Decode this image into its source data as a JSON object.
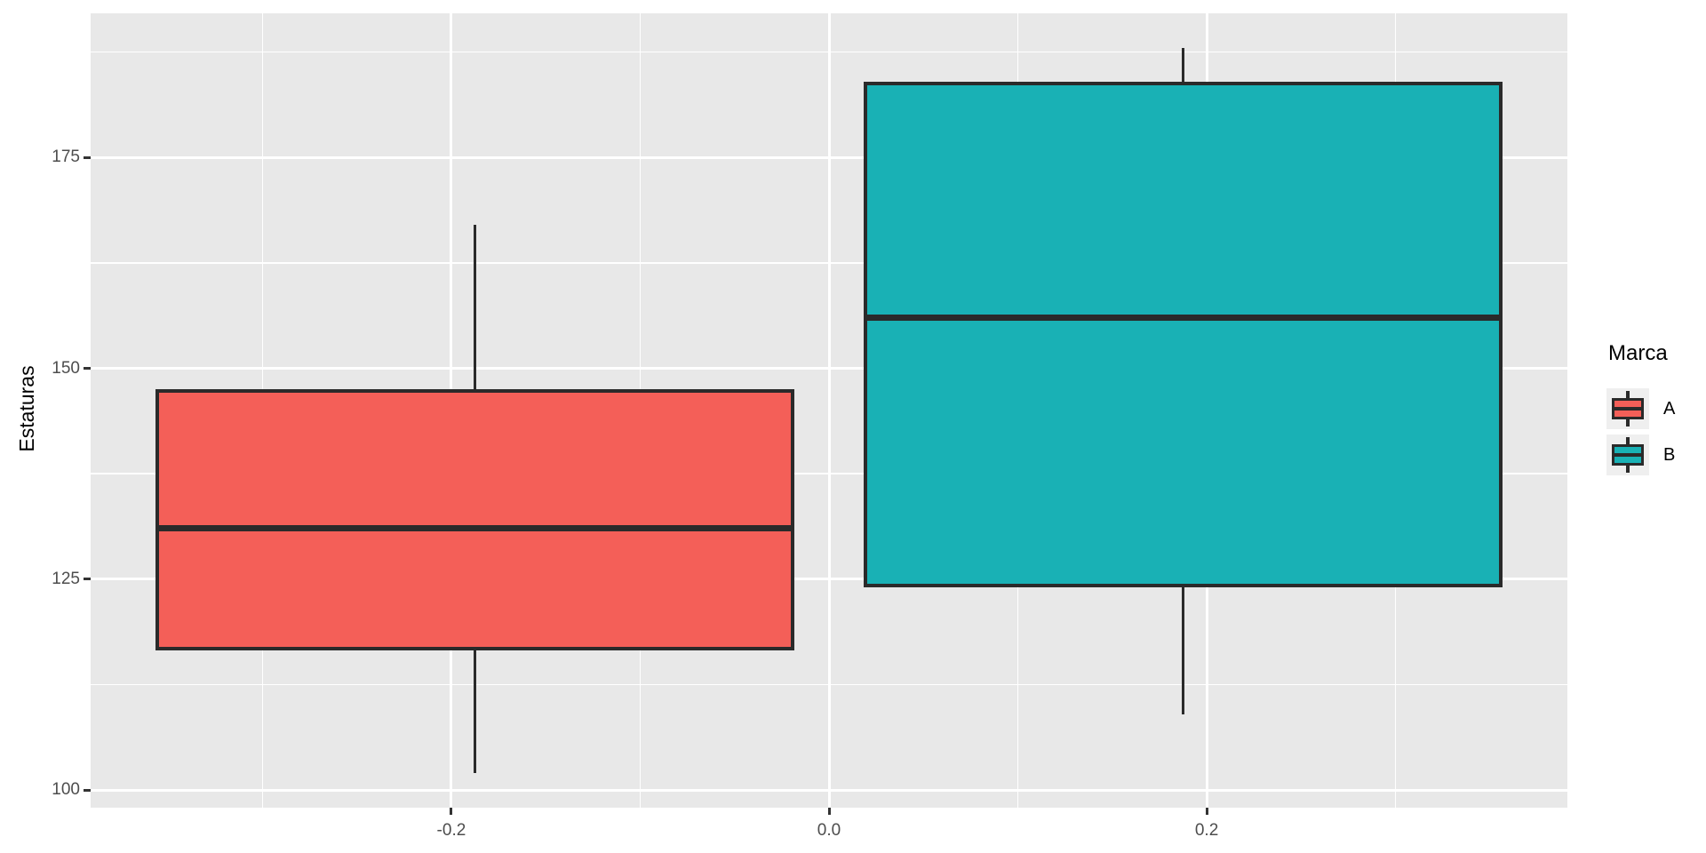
{
  "chart_data": {
    "type": "boxplot",
    "title": "",
    "xlabel": "",
    "ylabel": "Estaturas",
    "y_axis": {
      "ticks": [
        100,
        125,
        150,
        175
      ],
      "tick_labels": [
        "100",
        "125",
        "150",
        "175"
      ],
      "minor_ticks": [
        112.5,
        137.5,
        162.5,
        187.5
      ],
      "range": [
        97.9,
        192.1
      ],
      "grid": "on"
    },
    "x_axis": {
      "ticks": [
        -0.2,
        0.0,
        0.2
      ],
      "tick_labels": [
        "-0.2",
        "0.0",
        "0.2"
      ],
      "minor_ticks": [
        -0.3,
        -0.1,
        0.1,
        0.3
      ],
      "range": [
        -0.391,
        0.391
      ],
      "grid": "on"
    },
    "series": [
      {
        "name": "A",
        "x_center": -0.1875,
        "box_half_width": 0.169,
        "fill": "#F45F58",
        "whisker_low": 102,
        "q1": 116.5,
        "median": 131,
        "q3": 147.5,
        "whisker_high": 167
      },
      {
        "name": "B",
        "x_center": 0.1875,
        "box_half_width": 0.169,
        "fill": "#19B1B5",
        "whisker_low": 109,
        "q1": 124,
        "median": 156,
        "q3": 184,
        "whisker_high": 188
      }
    ],
    "legend": {
      "title": "Marca",
      "position": "right",
      "entries": [
        {
          "label": "A",
          "color": "#F45F58"
        },
        {
          "label": "B",
          "color": "#19B1B5"
        }
      ]
    },
    "style": {
      "panel_bg": "#E8E8E8",
      "grid_color": "#FFFFFF",
      "stroke_color": "#2A2A2A",
      "tick_mark_color": "#333333",
      "tick_label_color": "#4D4D4D",
      "legend_key_bg": "#EFEFEF"
    }
  }
}
